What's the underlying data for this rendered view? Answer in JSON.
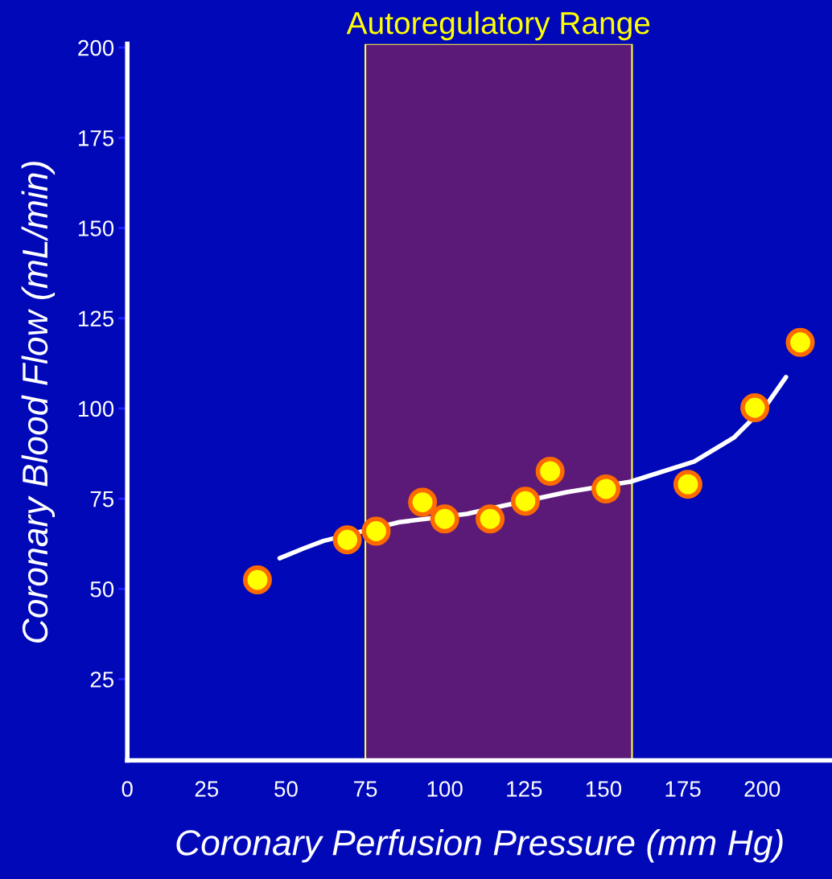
{
  "chart_data": {
    "type": "scatter",
    "xlabel": "Coronary Perfusion Pressure (mm Hg)",
    "ylabel": "Coronary Blood Flow (mL/min)",
    "xlim": [
      0,
      222
    ],
    "xticks": [
      0,
      25,
      50,
      75,
      100,
      125,
      150,
      175,
      200
    ],
    "ylim": [
      2.5,
      201
    ],
    "yticks": [
      25,
      50,
      75,
      100,
      125,
      150,
      175,
      200
    ],
    "grid": false,
    "legend": false,
    "marker": "circle",
    "bands": [
      {
        "axis": "x",
        "from": 75,
        "to": 159,
        "label": "Autoregulatory Range",
        "color": "#5c1a78"
      }
    ],
    "series": [
      {
        "type": "line",
        "color": "#ffffff",
        "marker": "none",
        "line_style": "solid",
        "x": [
          48,
          55.5,
          61.8,
          85.7,
          107,
          118.3,
          138.4,
          158.5,
          178.6,
          191.2,
          201.3,
          207.5
        ],
        "values": [
          58.5,
          61.2,
          63.3,
          68.5,
          70.8,
          73,
          76.8,
          79.7,
          85.3,
          92,
          100.9,
          108.7
        ]
      },
      {
        "color": "#ffff00",
        "x": [
          41,
          69.3,
          78.4,
          93,
          100,
          114.3,
          125.4,
          133.2,
          150.8,
          176.6,
          197.7,
          212
        ],
        "values": [
          52.5,
          63.6,
          66,
          74,
          69.4,
          69.4,
          74.3,
          82.6,
          77.7,
          79,
          100.2,
          118.3
        ]
      }
    ]
  }
}
